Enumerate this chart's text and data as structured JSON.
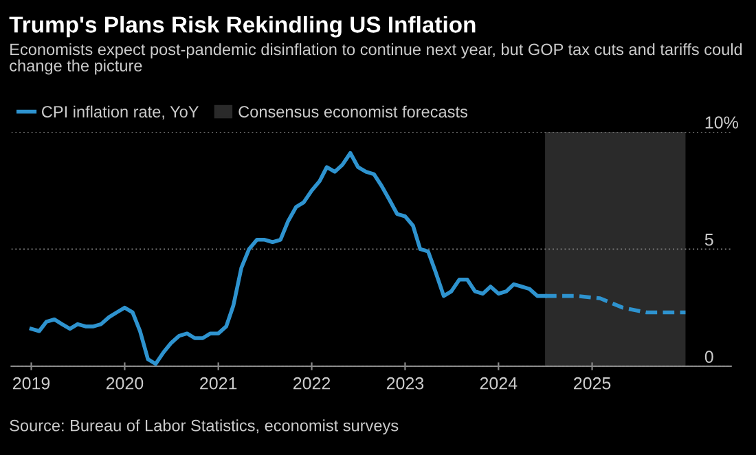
{
  "chart_data": {
    "type": "line",
    "title": "Trump's Plans Risk Rekindling US Inflation",
    "subtitle": "Economists expect post-pandemic disinflation to continue next year, but GOP tax cuts and tariffs could change the picture",
    "x": [
      "2019-01",
      "2019-02",
      "2019-03",
      "2019-04",
      "2019-05",
      "2019-06",
      "2019-07",
      "2019-08",
      "2019-09",
      "2019-10",
      "2019-11",
      "2019-12",
      "2020-01",
      "2020-02",
      "2020-03",
      "2020-04",
      "2020-05",
      "2020-06",
      "2020-07",
      "2020-08",
      "2020-09",
      "2020-10",
      "2020-11",
      "2020-12",
      "2021-01",
      "2021-02",
      "2021-03",
      "2021-04",
      "2021-05",
      "2021-06",
      "2021-07",
      "2021-08",
      "2021-09",
      "2021-10",
      "2021-11",
      "2021-12",
      "2022-01",
      "2022-02",
      "2022-03",
      "2022-04",
      "2022-05",
      "2022-06",
      "2022-07",
      "2022-08",
      "2022-09",
      "2022-10",
      "2022-11",
      "2022-12",
      "2023-01",
      "2023-02",
      "2023-03",
      "2023-04",
      "2023-05",
      "2023-06",
      "2023-07",
      "2023-08",
      "2023-09",
      "2023-10",
      "2023-11",
      "2023-12",
      "2024-01",
      "2024-02",
      "2024-03",
      "2024-04",
      "2024-05",
      "2024-06",
      "2024-07"
    ],
    "series": [
      {
        "name": "CPI inflation rate, YoY",
        "color": "#2e93cf",
        "line_style": "solid",
        "values": [
          1.6,
          1.5,
          1.9,
          2.0,
          1.8,
          1.6,
          1.8,
          1.7,
          1.7,
          1.8,
          2.1,
          2.3,
          2.5,
          2.3,
          1.5,
          0.3,
          0.1,
          0.6,
          1.0,
          1.3,
          1.4,
          1.2,
          1.2,
          1.4,
          1.4,
          1.7,
          2.6,
          4.2,
          5.0,
          5.4,
          5.4,
          5.3,
          5.4,
          6.2,
          6.8,
          7.0,
          7.5,
          7.9,
          8.5,
          8.3,
          8.6,
          9.1,
          8.5,
          8.3,
          8.2,
          7.7,
          7.1,
          6.5,
          6.4,
          6.0,
          5.0,
          4.9,
          4.0,
          3.0,
          3.2,
          3.7,
          3.7,
          3.2,
          3.1,
          3.4,
          3.1,
          3.2,
          3.5,
          3.4,
          3.3,
          3.0,
          3.0
        ]
      },
      {
        "color": "#2e93cf",
        "line_style": "dashed",
        "x": [
          "2024-07",
          "2024-11",
          "2025-02",
          "2025-05",
          "2025-08",
          "2026-01"
        ],
        "values": [
          3.0,
          3.0,
          2.9,
          2.5,
          2.3,
          2.3
        ]
      }
    ],
    "xlim": [
      "2018-10-15",
      "2026-06-28"
    ],
    "xticks": [
      "2019",
      "2020",
      "2021",
      "2022",
      "2023",
      "2024",
      "2025"
    ],
    "ylim": [
      0,
      10
    ],
    "yticks": [
      0,
      5,
      {
        "value": 10,
        "label": "10%"
      }
    ],
    "bands": [
      {
        "axis": "x",
        "from": "2024-07",
        "to": "2026-01",
        "label": "Consensus economist forecasts",
        "color": "#2a2a2a"
      }
    ],
    "grid": "y",
    "legend": "top left",
    "marker": "none",
    "annotations": [
      "Source: Bureau of Labor Statistics, economist surveys"
    ]
  }
}
